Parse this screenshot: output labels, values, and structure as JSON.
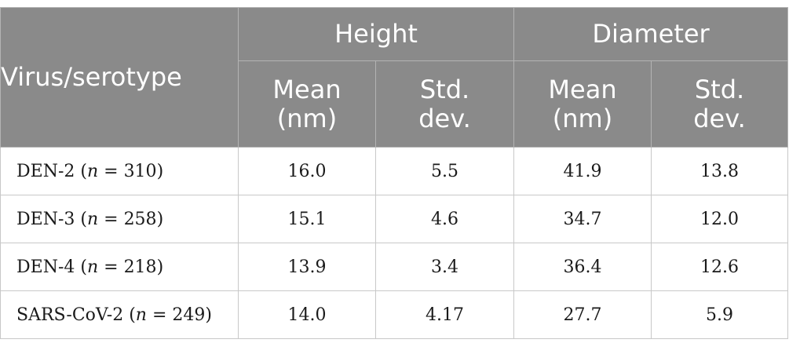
{
  "table": {
    "header": {
      "row_label": "Virus/serotype",
      "groups": [
        {
          "label": "Height",
          "sub": [
            "Mean (nm)",
            "Std. dev."
          ]
        },
        {
          "label": "Diameter",
          "sub": [
            "Mean (nm)",
            "Std. dev."
          ]
        }
      ],
      "sub_lines": {
        "mean_1": "Mean",
        "mean_2": "(nm)",
        "std_1": "Std.",
        "std_2": "dev."
      }
    },
    "rows": [
      {
        "name": "DEN-2",
        "n": "310",
        "height_mean": "16.0",
        "height_std": "5.5",
        "diameter_mean": "41.9",
        "diameter_std": "13.8"
      },
      {
        "name": "DEN-3",
        "n": "258",
        "height_mean": "15.1",
        "height_std": "4.6",
        "diameter_mean": "34.7",
        "diameter_std": "12.0"
      },
      {
        "name": "DEN-4",
        "n": "218",
        "height_mean": "13.9",
        "height_std": "3.4",
        "diameter_mean": "36.4",
        "diameter_std": "12.6"
      },
      {
        "name": "SARS-CoV-2",
        "n": "249",
        "height_mean": "14.0",
        "height_std": "4.17",
        "diameter_mean": "27.7",
        "diameter_std": "5.9"
      }
    ]
  },
  "colors": {
    "header_bg": "#8a8a8a",
    "header_text": "#ffffff",
    "border": "#c8c8c8"
  }
}
